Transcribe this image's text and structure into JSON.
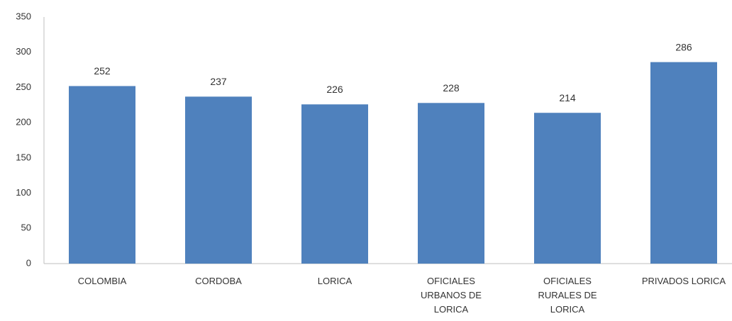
{
  "chart_data": {
    "type": "bar",
    "categories": [
      "COLOMBIA",
      "CORDOBA",
      "LORICA",
      "OFICIALES URBANOS DE LORICA",
      "OFICIALES RURALES DE LORICA",
      "PRIVADOS LORICA"
    ],
    "values": [
      252,
      237,
      226,
      228,
      214,
      286
    ],
    "color": "#4f81bd",
    "ylim": [
      0,
      350
    ],
    "yticks": [
      0,
      50,
      100,
      150,
      200,
      250,
      300,
      350
    ],
    "grid": false
  }
}
